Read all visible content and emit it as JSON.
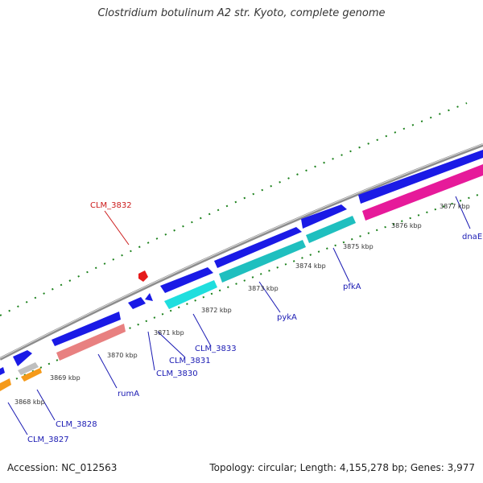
{
  "title": "Clostridium botulinum A2 str. Kyoto, complete genome",
  "footer": {
    "accession": "Accession: NC_012563",
    "summary": "Topology: circular; Length: 4,155,278 bp; Genes: 3,977"
  },
  "colors": {
    "backbone": "#8c8c8c",
    "gene_blue": "#1a1ae6",
    "gene_cyan": "#1fdede",
    "gene_teal": "#1fbfbf",
    "gene_salmon": "#e88080",
    "gene_orange": "#f59a1a",
    "gene_grey": "#bfbfbf",
    "gene_magenta": "#e61a9a",
    "label_blue": "#1a1ab3",
    "label_red": "#cc1a1a",
    "tick_green": "#1a801a"
  },
  "ticks": [
    {
      "label": "3868 kbp"
    },
    {
      "label": "3869 kbp"
    },
    {
      "label": "3870 kbp"
    },
    {
      "label": "3871 kbp"
    },
    {
      "label": "3872 kbp"
    },
    {
      "label": "3873 kbp"
    },
    {
      "label": "3874 kbp"
    },
    {
      "label": "3875 kbp"
    },
    {
      "label": "3876 kbp"
    },
    {
      "label": "3877 kbp"
    }
  ],
  "genes": [
    {
      "name": "CLM_3827"
    },
    {
      "name": "CLM_3828"
    },
    {
      "name": "rumA"
    },
    {
      "name": "CLM_3830"
    },
    {
      "name": "CLM_3831"
    },
    {
      "name": "CLM_3833"
    },
    {
      "name": "pykA"
    },
    {
      "name": "pfkA"
    },
    {
      "name": "dnaE"
    },
    {
      "name": "CLM_3832"
    }
  ]
}
